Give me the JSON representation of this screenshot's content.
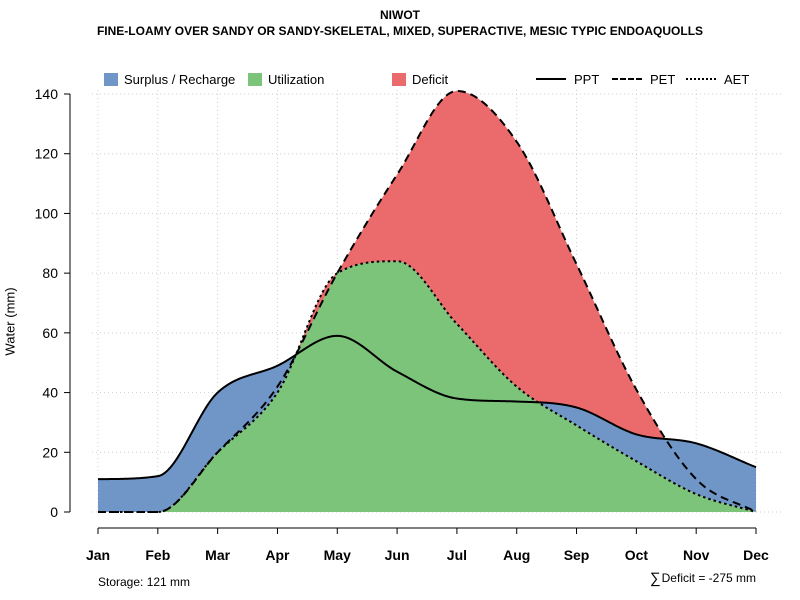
{
  "title": "NIWOT",
  "subtitle": "FINE-LOAMY OVER SANDY OR SANDY-SKELETAL, MIXED, SUPERACTIVE, MESIC TYPIC ENDOAQUOLLS",
  "footer": {
    "storage_label": "Storage: 121 mm",
    "deficit_symbol": "∑",
    "deficit_label": "Deficit = -275 mm"
  },
  "legend": {
    "surplus": "Surplus / Recharge",
    "utilization": "Utilization",
    "deficit": "Deficit",
    "ppt": "PPT",
    "pet": "PET",
    "aet": "AET"
  },
  "colors": {
    "surplus": "#6F96C7",
    "utilization": "#7CC47A",
    "deficit": "#EB6B6C",
    "line": "#000000",
    "grid": "#CFCFCF"
  },
  "chart_data": {
    "type": "area",
    "title": "NIWOT",
    "ylabel": "Water (mm)",
    "xlabel": "",
    "ylim": [
      0,
      140
    ],
    "yticks": [
      0,
      20,
      40,
      60,
      80,
      100,
      120,
      140
    ],
    "grid": true,
    "legend_position": "top",
    "categories": [
      "Jan",
      "Feb",
      "Mar",
      "Apr",
      "May",
      "Jun",
      "Jul",
      "Aug",
      "Sep",
      "Oct",
      "Nov",
      "Dec"
    ],
    "series": [
      {
        "name": "PPT",
        "style": "solid",
        "values": [
          11,
          12,
          40,
          49,
          59,
          47,
          38,
          37,
          35,
          26,
          23,
          15
        ]
      },
      {
        "name": "PET",
        "style": "dashed",
        "values": [
          0,
          0,
          20,
          42,
          80,
          113,
          141,
          124,
          83,
          41,
          11,
          0
        ]
      },
      {
        "name": "AET",
        "style": "dotted",
        "values": [
          0,
          0,
          20,
          40,
          80,
          84,
          63,
          42,
          29,
          17,
          6,
          0
        ]
      }
    ]
  }
}
